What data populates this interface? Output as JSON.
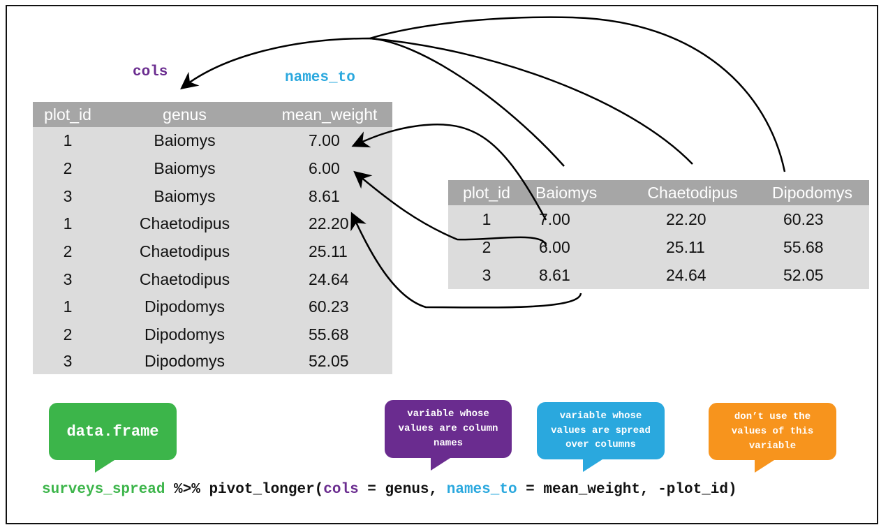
{
  "labels": {
    "cols": "cols",
    "names_to": "names_to"
  },
  "long_table": {
    "headers": [
      "plot_id",
      "genus",
      "mean_weight"
    ],
    "rows": [
      [
        "1",
        "Baiomys",
        "7.00"
      ],
      [
        "2",
        "Baiomys",
        "6.00"
      ],
      [
        "3",
        "Baiomys",
        "8.61"
      ],
      [
        "1",
        "Chaetodipus",
        "22.20"
      ],
      [
        "2",
        "Chaetodipus",
        "25.11"
      ],
      [
        "3",
        "Chaetodipus",
        "24.64"
      ],
      [
        "1",
        "Dipodomys",
        "60.23"
      ],
      [
        "2",
        "Dipodomys",
        "55.68"
      ],
      [
        "3",
        "Dipodomys",
        "52.05"
      ]
    ]
  },
  "wide_table": {
    "headers": [
      "plot_id",
      "Baiomys",
      "Chaetodipus",
      "Dipodomys"
    ],
    "rows": [
      [
        "1",
        "7.00",
        "22.20",
        "60.23"
      ],
      [
        "2",
        "6.00",
        "25.11",
        "55.68"
      ],
      [
        "3",
        "8.61",
        "24.64",
        "52.05"
      ]
    ]
  },
  "bubbles": {
    "data_frame": "data.frame",
    "cols_note": "variable whose values are column names",
    "names_note": "variable whose values are spread over columns",
    "drop_note": "don’t use the values of this variable"
  },
  "code": {
    "object": "surveys_spread",
    "pipe": " %>% pivot_longer(",
    "cols_kw": "cols",
    "cols_rest": " = genus, ",
    "names_kw": "names_to",
    "names_rest": " = mean_weight, -plot_id)"
  },
  "colors": {
    "green": "#3cb54a",
    "purple": "#6a2c8f",
    "blue": "#2aa8de",
    "orange": "#f7941d",
    "header_gray": "#a6a6a6",
    "cell_gray": "#dcdcdc"
  }
}
